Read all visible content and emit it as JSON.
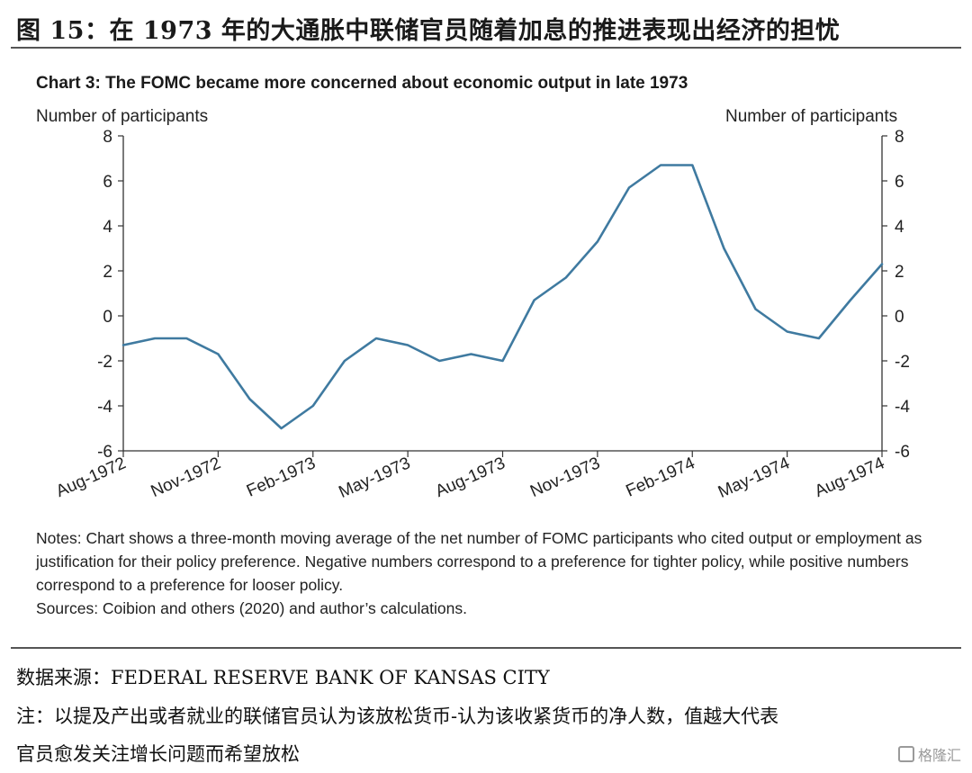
{
  "figure": {
    "title": "图 15：在 1973 年的大通胀中联储官员随着加息的推进表现出经济的担忧"
  },
  "chart_data": {
    "type": "line",
    "title": "Chart 3: The FOMC became more concerned about economic output in late 1973",
    "ylabel_left": "Number of participants",
    "ylabel_right": "Number of participants",
    "ylim": [
      -6,
      8
    ],
    "yticks": [
      -6,
      -4,
      -2,
      0,
      2,
      4,
      6,
      8
    ],
    "ytick_labels": [
      "-6",
      "-4",
      "-2",
      "0",
      "2",
      "4",
      "6",
      "8"
    ],
    "xtick_labels": [
      "Aug-1972",
      "Nov-1972",
      "Feb-1973",
      "May-1973",
      "Aug-1973",
      "Nov-1973",
      "Feb-1974",
      "May-1974",
      "Aug-1974"
    ],
    "grid": false,
    "series": [
      {
        "color": "#3f7aa0",
        "x": [
          "Aug-1972",
          "Sep-1972",
          "Oct-1972",
          "Nov-1972",
          "Dec-1972",
          "Jan-1973",
          "Feb-1973",
          "Mar-1973",
          "Apr-1973",
          "May-1973",
          "Jun-1973",
          "Jul-1973",
          "Aug-1973",
          "Sep-1973",
          "Oct-1973",
          "Nov-1973",
          "Dec-1973",
          "Jan-1974",
          "Feb-1974",
          "Mar-1974",
          "Apr-1974",
          "May-1974",
          "Jun-1974",
          "Jul-1974",
          "Aug-1974"
        ],
        "values": [
          -1.3,
          -1.0,
          -1.0,
          -1.7,
          -3.7,
          -5.0,
          -4.0,
          -2.0,
          -1.0,
          -1.3,
          -2.0,
          -1.7,
          -2.0,
          0.7,
          1.7,
          3.3,
          5.7,
          6.7,
          6.7,
          3.0,
          0.3,
          -0.7,
          -1.0,
          0.7,
          2.3
        ]
      }
    ]
  },
  "notes": {
    "line1": "Notes: Chart shows a three-month moving average of the net number of FOMC participants who cited output or employment as justification for their policy preference. Negative numbers correspond to a preference for tighter policy, while positive numbers correspond to a preference for looser policy.",
    "line2": "Sources: Coibion and others (2020) and author’s calculations."
  },
  "footer": {
    "source": "数据来源：FEDERAL RESERVE BANK OF KANSAS CITY",
    "note1": "注：以提及产出或者就业的联储官员认为该放松货币-认为该收紧货币的净人数，值越大代表",
    "note2": "官员愈发关注增长问题而希望放松"
  },
  "watermark": "格隆汇"
}
